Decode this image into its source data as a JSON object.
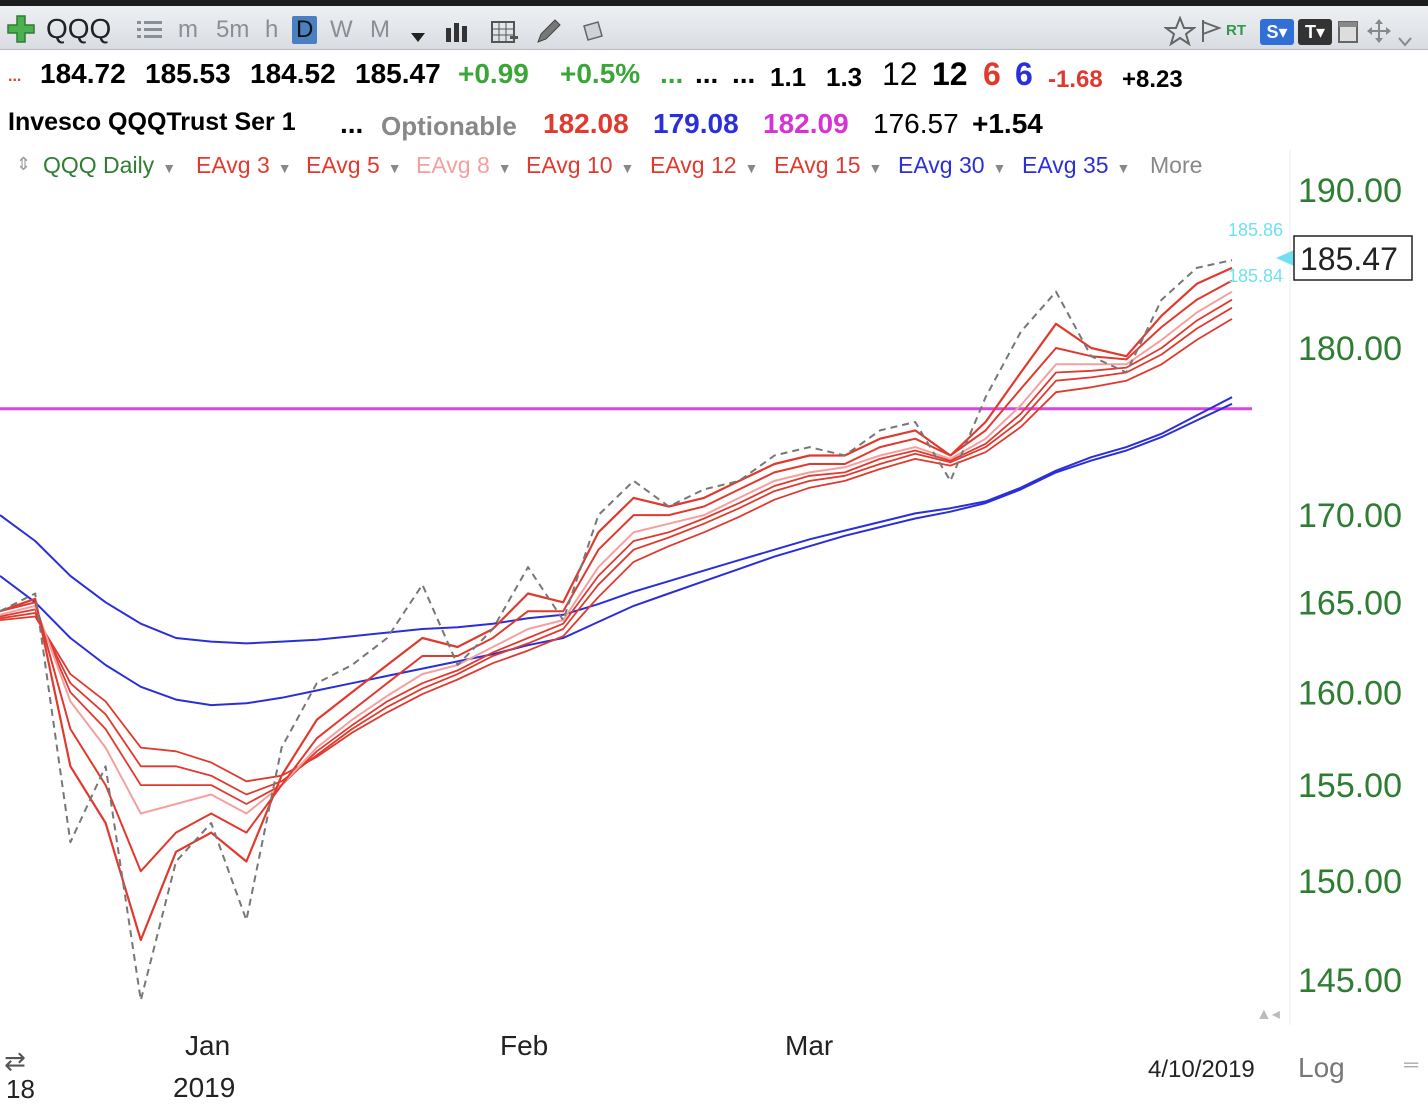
{
  "toolbar": {
    "add_icon": "plus-icon",
    "symbol": "QQQ",
    "list_icon": "list-icon",
    "timeframes": [
      "m",
      "5m",
      "h",
      "D",
      "W",
      "M"
    ],
    "selected_timeframe": "D",
    "right_labels": {
      "rt": "RT",
      "s": "S",
      "t": "T"
    }
  },
  "quote": {
    "dots_left": "...",
    "open": "184.72",
    "high": "185.53",
    "low": "184.52",
    "close": "185.47",
    "change": "+0.99",
    "change_pct": "+0.5%",
    "dots1": "...",
    "dots2": "...",
    "dots3": "...",
    "v1": "1.1",
    "v2": "1.3",
    "v3": "12",
    "v4": "12",
    "v5": "6",
    "v6": "6",
    "v7": "-1.68",
    "v8": "+8.23"
  },
  "quote2": {
    "name": "Invesco QQQTrust Ser 1",
    "dots": "...",
    "optionable": "Optionable",
    "p1": "182.08",
    "p2": "179.08",
    "p3": "182.09",
    "p4": "176.57",
    "p5": "+1.54"
  },
  "legend": {
    "items": [
      "QQQ Daily",
      "EAvg 3",
      "EAvg 5",
      "EAvg 8",
      "EAvg 10",
      "EAvg 12",
      "EAvg 15",
      "EAvg 30",
      "EAvg 35"
    ],
    "more": "More"
  },
  "axis": {
    "ticks": [
      "190.00",
      "180.00",
      "170.00",
      "165.00",
      "160.00",
      "155.00",
      "150.00",
      "145.00"
    ],
    "last_price": "185.47",
    "price_high": "185.86",
    "price_low": "185.84"
  },
  "bottom": {
    "year_short": "18",
    "month_jan": "Jan",
    "year": "2019",
    "month_feb": "Feb",
    "month_mar": "Mar",
    "date": "4/10/2019",
    "scale": "Log"
  },
  "colors": {
    "red": "#e03a2f",
    "pink": "#f5a0a0",
    "blue": "#2b2fd9",
    "magenta": "#dd44dd",
    "green_axis": "#2e7d32",
    "cyan": "#6fe0f0"
  },
  "chart_data": {
    "type": "line",
    "title": "QQQ Daily",
    "ylim": [
      143,
      192
    ],
    "scale": "log",
    "y_ticks": [
      190,
      180,
      170,
      165,
      160,
      155,
      150,
      145
    ],
    "x_labels": [
      "Jan",
      "Feb",
      "Mar"
    ],
    "horizontal_line": 176.3,
    "series": [
      {
        "name": "QQQ Daily",
        "values": [
          164.5,
          165.5,
          152.0,
          156.0,
          144.0,
          151.0,
          153.0,
          148.0,
          157.0,
          160.5,
          161.5,
          163.0,
          166.0,
          161.5,
          163.5,
          167.0,
          164.0,
          170.0,
          172.0,
          170.5,
          171.5,
          172.0,
          173.5,
          174.0,
          173.5,
          175.0,
          175.5,
          172.0,
          177.0,
          181.0,
          183.5,
          179.5,
          178.5,
          183.0,
          185.0,
          185.5
        ]
      },
      {
        "name": "EAvg 3",
        "values": [
          164.5,
          165.2,
          156.0,
          153.0,
          147.0,
          151.5,
          152.5,
          151.0,
          155.5,
          158.5,
          160.0,
          161.5,
          163.0,
          162.5,
          163.5,
          165.5,
          165.0,
          169.0,
          171.0,
          170.5,
          171.0,
          172.0,
          173.0,
          173.5,
          173.5,
          174.5,
          175.0,
          173.5,
          175.5,
          178.5,
          181.5,
          180.0,
          179.5,
          182.0,
          184.0,
          185.0
        ]
      },
      {
        "name": "EAvg 5",
        "values": [
          164.5,
          165.0,
          158.0,
          155.0,
          150.5,
          152.5,
          153.5,
          152.5,
          155.0,
          157.5,
          159.0,
          160.5,
          162.0,
          162.0,
          163.0,
          164.5,
          164.5,
          168.0,
          170.0,
          170.0,
          170.5,
          171.5,
          172.5,
          173.0,
          173.0,
          174.0,
          174.5,
          173.5,
          175.0,
          177.5,
          180.0,
          179.5,
          179.3,
          181.3,
          183.0,
          184.2
        ]
      },
      {
        "name": "EAvg 8",
        "values": [
          164.3,
          164.8,
          159.5,
          157.0,
          153.5,
          154.0,
          154.5,
          153.5,
          155.0,
          157.0,
          158.5,
          159.8,
          161.0,
          161.5,
          162.5,
          163.5,
          164.0,
          167.0,
          169.0,
          169.5,
          170.0,
          171.0,
          172.0,
          172.5,
          172.8,
          173.5,
          174.0,
          173.3,
          174.5,
          176.5,
          179.0,
          179.0,
          179.0,
          180.5,
          182.2,
          183.5
        ]
      },
      {
        "name": "EAvg 10",
        "values": [
          164.2,
          164.6,
          160.0,
          158.0,
          155.0,
          155.0,
          155.0,
          154.0,
          155.0,
          156.8,
          158.2,
          159.5,
          160.5,
          161.2,
          162.2,
          163.0,
          163.8,
          166.5,
          168.5,
          169.0,
          169.8,
          170.7,
          171.7,
          172.3,
          172.5,
          173.3,
          173.8,
          173.2,
          174.2,
          176.0,
          178.5,
          178.6,
          178.8,
          180.0,
          181.7,
          183.0
        ]
      },
      {
        "name": "EAvg 12",
        "values": [
          164.1,
          164.4,
          160.5,
          158.8,
          156.0,
          156.0,
          155.5,
          154.5,
          155.2,
          156.6,
          158.0,
          159.2,
          160.2,
          161.0,
          162.0,
          162.7,
          163.5,
          166.0,
          168.0,
          168.7,
          169.5,
          170.4,
          171.4,
          172.0,
          172.3,
          173.0,
          173.6,
          173.1,
          174.0,
          175.6,
          178.0,
          178.2,
          178.5,
          179.6,
          181.2,
          182.5
        ]
      },
      {
        "name": "EAvg 15",
        "values": [
          164.0,
          164.2,
          161.0,
          159.5,
          157.0,
          156.8,
          156.2,
          155.2,
          155.5,
          156.5,
          157.8,
          158.9,
          159.9,
          160.7,
          161.6,
          162.3,
          163.1,
          165.3,
          167.3,
          168.2,
          169.0,
          169.9,
          170.9,
          171.6,
          172.0,
          172.7,
          173.3,
          172.9,
          173.7,
          175.2,
          177.3,
          177.6,
          178.0,
          179.0,
          180.5,
          181.8
        ]
      },
      {
        "name": "EAvg 30",
        "values": [
          170.0,
          168.5,
          166.5,
          165.0,
          163.8,
          163.0,
          162.8,
          162.7,
          162.8,
          162.9,
          163.1,
          163.3,
          163.5,
          163.6,
          163.8,
          164.1,
          164.3,
          164.9,
          165.6,
          166.2,
          166.8,
          167.4,
          168.0,
          168.6,
          169.1,
          169.6,
          170.1,
          170.4,
          170.8,
          171.6,
          172.6,
          173.4,
          174.0,
          174.8,
          175.9,
          177.0
        ]
      },
      {
        "name": "EAvg 35",
        "values": [
          166.5,
          165.0,
          163.0,
          161.5,
          160.3,
          159.6,
          159.3,
          159.4,
          159.7,
          160.1,
          160.5,
          160.9,
          161.3,
          161.7,
          162.1,
          162.6,
          163.0,
          163.9,
          164.8,
          165.5,
          166.2,
          166.9,
          167.6,
          168.2,
          168.8,
          169.3,
          169.8,
          170.2,
          170.7,
          171.5,
          172.5,
          173.2,
          173.8,
          174.6,
          175.6,
          176.6
        ]
      }
    ]
  }
}
